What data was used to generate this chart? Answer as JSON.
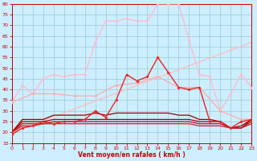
{
  "xlabel": "Vent moyen/en rafales ( km/h )",
  "xlim": [
    0,
    23
  ],
  "ylim": [
    15,
    80
  ],
  "yticks": [
    15,
    20,
    25,
    30,
    35,
    40,
    45,
    50,
    55,
    60,
    65,
    70,
    75,
    80
  ],
  "xticks": [
    0,
    1,
    2,
    3,
    4,
    5,
    6,
    7,
    8,
    9,
    10,
    11,
    12,
    13,
    14,
    15,
    16,
    17,
    18,
    19,
    20,
    21,
    22,
    23
  ],
  "bg_color": "#cceeff",
  "grid_color": "#99cccc",
  "lines": [
    {
      "x": [
        0,
        1,
        2,
        3,
        4,
        5,
        6,
        7,
        8,
        9,
        10,
        11,
        12,
        13,
        14,
        15,
        16,
        17,
        18,
        19,
        20,
        21,
        22,
        23
      ],
      "y": [
        34,
        42,
        38,
        45,
        47,
        46,
        47,
        47,
        62,
        72,
        72,
        73,
        72,
        72,
        80,
        80,
        80,
        63,
        47,
        46,
        30,
        38,
        47,
        41
      ],
      "color": "#ffbbcc",
      "lw": 1.0,
      "marker": "D",
      "ms": 2.0,
      "zorder": 3
    },
    {
      "x": [
        0,
        2,
        4,
        6,
        8,
        10,
        12,
        14,
        16,
        18,
        20,
        22,
        23
      ],
      "y": [
        34,
        38,
        38,
        37,
        37,
        42,
        43,
        46,
        41,
        41,
        30,
        26,
        26
      ],
      "color": "#ffaaaa",
      "lw": 0.9,
      "marker": "D",
      "ms": 2.0,
      "zorder": 3
    },
    {
      "x": [
        0,
        23
      ],
      "y": [
        20,
        62
      ],
      "color": "#ffbbbb",
      "lw": 0.9,
      "marker": null,
      "ms": 0,
      "zorder": 2
    },
    {
      "x": [
        0,
        1,
        2,
        3,
        4,
        5,
        6,
        7,
        8,
        9,
        10,
        11,
        12,
        13,
        14,
        15,
        16,
        17,
        18,
        19,
        20,
        21,
        22,
        23
      ],
      "y": [
        19,
        22,
        23,
        25,
        24,
        25,
        25,
        26,
        30,
        27,
        35,
        47,
        44,
        46,
        55,
        48,
        41,
        40,
        41,
        25,
        25,
        22,
        25,
        26
      ],
      "color": "#ee2222",
      "lw": 1.0,
      "marker": "D",
      "ms": 2.0,
      "zorder": 5
    },
    {
      "x": [
        0,
        1,
        2,
        3,
        4,
        5,
        6,
        7,
        8,
        9,
        10,
        11,
        12,
        13,
        14,
        15,
        16,
        17,
        18,
        19,
        20,
        21,
        22,
        23
      ],
      "y": [
        20,
        26,
        26,
        26,
        28,
        28,
        28,
        28,
        29,
        28,
        29,
        29,
        29,
        29,
        29,
        29,
        28,
        28,
        26,
        26,
        25,
        22,
        23,
        26
      ],
      "color": "#990000",
      "lw": 0.9,
      "marker": null,
      "ms": 0,
      "zorder": 4
    },
    {
      "x": [
        0,
        1,
        2,
        3,
        4,
        5,
        6,
        7,
        8,
        9,
        10,
        11,
        12,
        13,
        14,
        15,
        16,
        17,
        18,
        19,
        20,
        21,
        22,
        23
      ],
      "y": [
        20,
        25,
        25,
        25,
        26,
        26,
        26,
        26,
        26,
        26,
        26,
        26,
        26,
        26,
        26,
        26,
        26,
        26,
        25,
        25,
        25,
        22,
        22,
        26
      ],
      "color": "#aa0000",
      "lw": 0.9,
      "marker": null,
      "ms": 0,
      "zorder": 4
    },
    {
      "x": [
        0,
        1,
        2,
        3,
        4,
        5,
        6,
        7,
        8,
        9,
        10,
        11,
        12,
        13,
        14,
        15,
        16,
        17,
        18,
        19,
        20,
        21,
        22,
        23
      ],
      "y": [
        20,
        24,
        24,
        24,
        25,
        25,
        25,
        25,
        25,
        25,
        25,
        25,
        25,
        25,
        25,
        25,
        25,
        25,
        24,
        24,
        24,
        22,
        22,
        25
      ],
      "color": "#bb1111",
      "lw": 0.9,
      "marker": null,
      "ms": 0,
      "zorder": 4
    },
    {
      "x": [
        0,
        1,
        2,
        3,
        4,
        5,
        6,
        7,
        8,
        9,
        10,
        11,
        12,
        13,
        14,
        15,
        16,
        17,
        18,
        19,
        20,
        21,
        22,
        23
      ],
      "y": [
        20,
        23,
        23,
        24,
        24,
        24,
        24,
        24,
        24,
        24,
        24,
        24,
        24,
        24,
        24,
        24,
        24,
        24,
        23,
        23,
        23,
        22,
        22,
        24
      ],
      "color": "#cc2222",
      "lw": 0.9,
      "marker": null,
      "ms": 0,
      "zorder": 4
    }
  ]
}
